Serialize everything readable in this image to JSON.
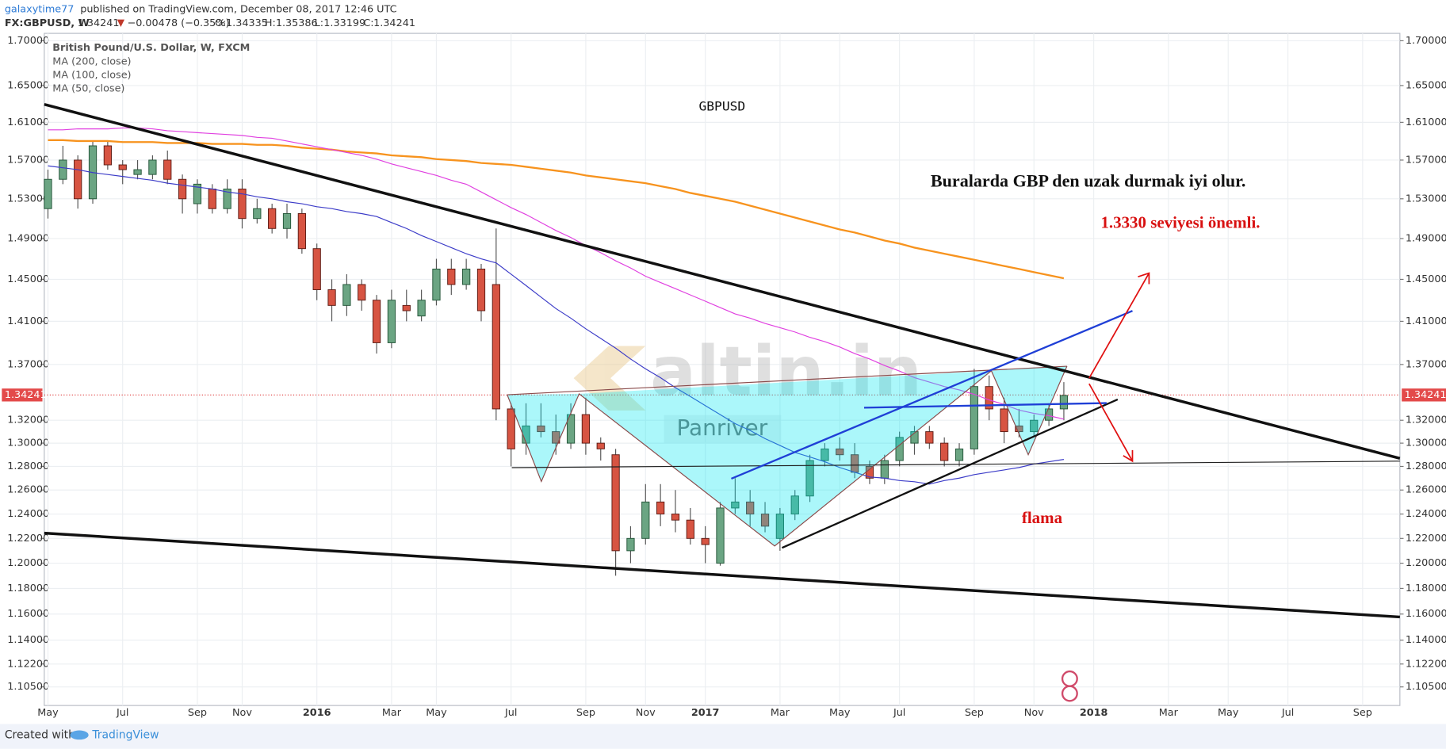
{
  "header": {
    "author": "galaxytime77",
    "published": "published on TradingView.com, December 08, 2017 12:46 UTC",
    "symbol": "FX:GBPUSD, W",
    "last": "1.34241",
    "change": "−0.00478 (−0.35%)",
    "ohlc": [
      {
        "label": "O:",
        "value": "1.34335"
      },
      {
        "label": "H:",
        "value": "1.35386"
      },
      {
        "label": "L:",
        "value": "1.33199"
      },
      {
        "label": "C:",
        "value": "1.34241"
      }
    ]
  },
  "footer": {
    "created": "Created with",
    "brand": "TradingView"
  },
  "chart_data": {
    "type": "candlestick",
    "log_scale": true,
    "grid": true,
    "ylim": [
      1.0914,
      1.7084
    ],
    "yticks": [
      {
        "value": 1.7,
        "label": "1.70000"
      },
      {
        "value": 1.65,
        "label": "1.65000"
      },
      {
        "value": 1.61,
        "label": "1.61000"
      },
      {
        "value": 1.57,
        "label": "1.57000"
      },
      {
        "value": 1.53,
        "label": "1.53000"
      },
      {
        "value": 1.49,
        "label": "1.49000"
      },
      {
        "value": 1.45,
        "label": "1.45000"
      },
      {
        "value": 1.41,
        "label": "1.41000"
      },
      {
        "value": 1.37,
        "label": "1.37000"
      },
      {
        "value": 1.32,
        "label": "1.32000"
      },
      {
        "value": 1.3,
        "label": "1.30000"
      },
      {
        "value": 1.28,
        "label": "1.28000"
      },
      {
        "value": 1.26,
        "label": "1.26000"
      },
      {
        "value": 1.24,
        "label": "1.24000"
      },
      {
        "value": 1.22,
        "label": "1.22000"
      },
      {
        "value": 1.2,
        "label": "1.20000"
      },
      {
        "value": 1.18,
        "label": "1.18000"
      },
      {
        "value": 1.16,
        "label": "1.16000"
      },
      {
        "value": 1.14,
        "label": "1.14000"
      },
      {
        "value": 1.122,
        "label": "1.12200"
      },
      {
        "value": 1.105,
        "label": "1.10500"
      }
    ],
    "last_price": 1.34241,
    "categories": [
      "May",
      null,
      null,
      null,
      null,
      "Jul",
      null,
      null,
      null,
      null,
      "Sep",
      null,
      null,
      "Nov",
      null,
      null,
      null,
      null,
      "2016",
      null,
      null,
      null,
      null,
      "Mar",
      null,
      null,
      "May",
      null,
      null,
      null,
      null,
      "Jul",
      null,
      null,
      null,
      null,
      "Sep",
      null,
      null,
      null,
      "Nov",
      null,
      null,
      null,
      "2017",
      null,
      null,
      null,
      null,
      "Mar",
      null,
      null,
      null,
      "May",
      null,
      null,
      null,
      "Jul",
      null,
      null,
      null,
      null,
      "Sep",
      null,
      null,
      null,
      "Nov",
      null,
      null,
      null,
      "2018",
      null,
      null,
      null,
      null,
      "Mar",
      null,
      null,
      null,
      "May",
      null,
      null,
      null,
      "Jul",
      null,
      null,
      null,
      null,
      "Sep",
      null,
      null
    ],
    "series": [
      {
        "name": "British Pound/U.S. Dollar, W, FXCM",
        "up_color": "#6ba583",
        "down_color": "#d75442",
        "open": [
          1.52,
          1.55,
          1.57,
          1.53,
          1.585,
          1.565,
          1.555,
          1.555,
          1.57,
          1.55,
          1.525,
          1.54,
          1.52,
          1.54,
          1.51,
          1.52,
          1.5,
          1.515,
          1.48,
          1.44,
          1.425,
          1.445,
          1.43,
          1.39,
          1.425,
          1.415,
          1.43,
          1.46,
          1.445,
          1.46,
          1.445,
          1.33,
          1.3,
          1.315,
          1.31,
          1.3,
          1.325,
          1.3,
          1.29,
          1.21,
          1.22,
          1.25,
          1.24,
          1.235,
          1.22,
          1.2,
          1.245,
          1.25,
          1.24,
          1.22,
          1.24,
          1.255,
          1.285,
          1.295,
          1.29,
          1.28,
          1.27,
          1.285,
          1.3,
          1.31,
          1.3,
          1.285,
          1.295,
          1.35,
          1.33,
          1.315,
          1.31,
          1.32,
          1.33,
          null,
          null,
          null,
          null,
          null,
          null,
          null,
          null,
          null,
          null,
          null,
          null,
          null,
          null,
          null,
          null,
          null,
          null,
          null,
          null,
          null,
          null
        ],
        "high": [
          1.56,
          1.585,
          1.575,
          1.59,
          1.59,
          1.57,
          1.57,
          1.575,
          1.58,
          1.555,
          1.55,
          1.545,
          1.55,
          1.55,
          1.53,
          1.525,
          1.525,
          1.52,
          1.485,
          1.45,
          1.455,
          1.45,
          1.435,
          1.44,
          1.44,
          1.44,
          1.47,
          1.47,
          1.47,
          1.465,
          1.5,
          1.335,
          1.335,
          1.335,
          1.325,
          1.335,
          1.34,
          1.305,
          1.295,
          1.23,
          1.265,
          1.265,
          1.26,
          1.245,
          1.23,
          1.25,
          1.27,
          1.26,
          1.25,
          1.245,
          1.26,
          1.29,
          1.3,
          1.305,
          1.3,
          1.285,
          1.29,
          1.31,
          1.315,
          1.315,
          1.305,
          1.3,
          1.366,
          1.36,
          1.34,
          1.33,
          1.325,
          1.335,
          1.354,
          null,
          null,
          null,
          null,
          null,
          null,
          null,
          null,
          null,
          null,
          null,
          null,
          null,
          null,
          null,
          null,
          null,
          null,
          null,
          null,
          null,
          null
        ],
        "low": [
          1.51,
          1.545,
          1.52,
          1.525,
          1.56,
          1.545,
          1.55,
          1.55,
          1.545,
          1.515,
          1.515,
          1.515,
          1.515,
          1.5,
          1.505,
          1.495,
          1.49,
          1.475,
          1.43,
          1.41,
          1.415,
          1.42,
          1.38,
          1.385,
          1.41,
          1.41,
          1.425,
          1.435,
          1.44,
          1.41,
          1.32,
          1.28,
          1.29,
          1.305,
          1.29,
          1.295,
          1.29,
          1.285,
          1.19,
          1.2,
          1.215,
          1.23,
          1.225,
          1.215,
          1.2,
          1.198,
          1.24,
          1.23,
          1.225,
          1.21,
          1.235,
          1.25,
          1.28,
          1.285,
          1.27,
          1.265,
          1.265,
          1.28,
          1.29,
          1.295,
          1.28,
          1.28,
          1.29,
          1.32,
          1.3,
          1.305,
          1.305,
          1.315,
          1.32,
          null,
          null,
          null,
          null,
          null,
          null,
          null,
          null,
          null,
          null,
          null,
          null,
          null,
          null,
          null,
          null,
          null,
          null,
          null,
          null,
          null,
          null
        ],
        "close": [
          1.55,
          1.57,
          1.53,
          1.585,
          1.565,
          1.56,
          1.56,
          1.57,
          1.55,
          1.53,
          1.545,
          1.52,
          1.54,
          1.51,
          1.52,
          1.5,
          1.515,
          1.48,
          1.44,
          1.425,
          1.445,
          1.43,
          1.39,
          1.43,
          1.42,
          1.43,
          1.46,
          1.445,
          1.46,
          1.42,
          1.33,
          1.295,
          1.315,
          1.31,
          1.3,
          1.325,
          1.3,
          1.295,
          1.21,
          1.22,
          1.25,
          1.24,
          1.235,
          1.22,
          1.215,
          1.245,
          1.25,
          1.24,
          1.23,
          1.24,
          1.255,
          1.285,
          1.295,
          1.29,
          1.275,
          1.27,
          1.285,
          1.305,
          1.31,
          1.3,
          1.285,
          1.295,
          1.35,
          1.33,
          1.31,
          1.31,
          1.32,
          1.33,
          1.342,
          null,
          null,
          null,
          null,
          null,
          null,
          null,
          null,
          null,
          null,
          null,
          null,
          null,
          null,
          null,
          null,
          null,
          null,
          null,
          null,
          null,
          null
        ]
      },
      {
        "name": "MA (200, close)",
        "color": "#f7931e",
        "values": [
          1.591,
          1.591,
          1.59,
          1.59,
          1.59,
          1.589,
          1.589,
          1.589,
          1.588,
          1.588,
          1.588,
          1.587,
          1.587,
          1.587,
          1.586,
          1.586,
          1.585,
          1.583,
          1.582,
          1.581,
          1.579,
          1.578,
          1.577,
          1.575,
          1.574,
          1.573,
          1.571,
          1.57,
          1.569,
          1.567,
          1.566,
          1.565,
          1.563,
          1.561,
          1.559,
          1.557,
          1.554,
          1.552,
          1.55,
          1.548,
          1.546,
          1.543,
          1.54,
          1.536,
          1.533,
          1.53,
          1.527,
          1.523,
          1.519,
          1.515,
          1.511,
          1.507,
          1.503,
          1.499,
          1.496,
          1.492,
          1.488,
          1.485,
          1.481,
          1.478,
          1.475,
          1.472,
          1.469,
          1.466,
          1.463,
          1.46,
          1.457,
          1.454,
          1.451,
          null,
          null,
          null,
          null,
          null,
          null,
          null,
          null,
          null,
          null,
          null,
          null,
          null,
          null,
          null,
          null,
          null,
          null,
          null,
          null,
          null,
          null
        ]
      },
      {
        "name": "MA (100, close)",
        "color": "#e040e0",
        "values": [
          1.602,
          1.602,
          1.603,
          1.603,
          1.603,
          1.604,
          1.604,
          1.603,
          1.601,
          1.6,
          1.599,
          1.598,
          1.597,
          1.596,
          1.594,
          1.593,
          1.59,
          1.587,
          1.584,
          1.581,
          1.578,
          1.575,
          1.571,
          1.566,
          1.562,
          1.558,
          1.554,
          1.549,
          1.545,
          1.537,
          1.529,
          1.521,
          1.514,
          1.506,
          1.498,
          1.491,
          1.483,
          1.476,
          1.468,
          1.461,
          1.453,
          1.447,
          1.441,
          1.435,
          1.429,
          1.423,
          1.417,
          1.413,
          1.408,
          1.404,
          1.4,
          1.395,
          1.391,
          1.386,
          1.38,
          1.375,
          1.369,
          1.364,
          1.358,
          1.354,
          1.35,
          1.347,
          1.343,
          1.338,
          1.334,
          1.329,
          1.326,
          1.324,
          1.321,
          null,
          null,
          null,
          null,
          null,
          null,
          null,
          null,
          null,
          null,
          null,
          null,
          null,
          null,
          null,
          null,
          null,
          null,
          null,
          null,
          null,
          null
        ]
      },
      {
        "name": "MA (50, close)",
        "color": "#3c3cc8",
        "values": [
          1.564,
          1.562,
          1.56,
          1.557,
          1.555,
          1.553,
          1.551,
          1.549,
          1.546,
          1.544,
          1.542,
          1.54,
          1.537,
          1.535,
          1.532,
          1.53,
          1.527,
          1.525,
          1.522,
          1.52,
          1.517,
          1.515,
          1.512,
          1.506,
          1.5,
          1.493,
          1.487,
          1.481,
          1.475,
          1.47,
          1.466,
          1.455,
          1.444,
          1.433,
          1.422,
          1.413,
          1.403,
          1.394,
          1.385,
          1.375,
          1.366,
          1.358,
          1.349,
          1.341,
          1.333,
          1.325,
          1.317,
          1.311,
          1.304,
          1.298,
          1.292,
          1.288,
          1.284,
          1.279,
          1.275,
          1.271,
          1.27,
          1.268,
          1.267,
          1.265,
          1.268,
          1.27,
          1.273,
          1.275,
          1.277,
          1.279,
          1.282,
          1.284,
          1.286,
          null,
          null,
          null,
          null,
          null,
          null,
          null,
          null,
          null,
          null,
          null,
          null,
          null,
          null,
          null,
          null,
          null,
          null,
          null,
          null,
          null,
          null
        ]
      }
    ],
    "annotations": {
      "symbol_label": "GBPUSD",
      "comment": "Buralarda GBP den uzak durmak iyi olur.",
      "level_note": "1.3330 seviyesi önemli.",
      "pattern": "flama",
      "watermark": "altin.in",
      "watermark_user": "Panriver"
    }
  }
}
